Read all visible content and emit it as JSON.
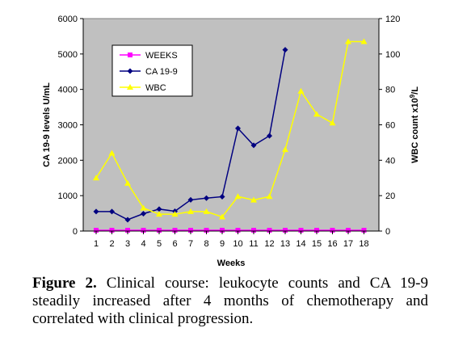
{
  "chart_data": {
    "type": "line",
    "title": "",
    "x": [
      1,
      2,
      3,
      4,
      5,
      6,
      7,
      8,
      9,
      10,
      11,
      12,
      13,
      14,
      15,
      16,
      17,
      18
    ],
    "xlabel": "Weeks",
    "ylabel_left": "CA 19-9 levels U/mL",
    "ylabel_right_prefix": "WBC count x10",
    "ylabel_right_sup": "9",
    "ylabel_right_suffix": "/L",
    "ylim_left": [
      0,
      6000
    ],
    "yticks_left": [
      "0",
      "1000",
      "2000",
      "3000",
      "4000",
      "5000",
      "6000"
    ],
    "ylim_right": [
      0,
      120
    ],
    "yticks_right": [
      "0",
      "20",
      "40",
      "60",
      "80",
      "100",
      "120"
    ],
    "xticks": [
      "1",
      "2",
      "3",
      "4",
      "5",
      "6",
      "7",
      "8",
      "9",
      "10",
      "11",
      "12",
      "13",
      "14",
      "15",
      "16",
      "17",
      "18"
    ],
    "plot_background": "#c0c0c0",
    "grid": false,
    "legend_position": "top-left",
    "series": [
      {
        "name": "WEEKS",
        "axis": "left",
        "color": "#ff00ff",
        "marker": "square",
        "x": [
          1,
          2,
          3,
          4,
          5,
          6,
          7,
          8,
          9,
          10,
          11,
          12,
          13,
          14,
          15,
          16,
          17,
          18
        ],
        "values": [
          1,
          2,
          3,
          4,
          5,
          6,
          7,
          8,
          9,
          10,
          11,
          12,
          13,
          14,
          15,
          16,
          17,
          18
        ]
      },
      {
        "name": "CA 19-9",
        "axis": "left",
        "color": "#000080",
        "marker": "diamond",
        "x": [
          1,
          2,
          3,
          4,
          5,
          6,
          7,
          8,
          9,
          10,
          11,
          12,
          13
        ],
        "values": [
          550,
          550,
          320,
          490,
          620,
          560,
          880,
          930,
          970,
          2900,
          2420,
          2690,
          5120
        ]
      },
      {
        "name": "WBC",
        "axis": "right",
        "color": "#ffff00",
        "marker": "triangle",
        "x": [
          1,
          2,
          3,
          4,
          5,
          6,
          7,
          8,
          9,
          10,
          11,
          12,
          13,
          14,
          15,
          16,
          17,
          18
        ],
        "values": [
          30,
          44,
          27,
          13,
          9.5,
          9.5,
          11,
          11,
          8,
          19.5,
          17.5,
          19.5,
          46,
          79,
          66,
          61,
          107,
          107
        ]
      }
    ]
  },
  "caption": {
    "label": "Figure 2.",
    "text": " Clinical course: leukocyte counts and CA 19-9 steadily increased after 4 months of chemotherapy and correlated with clinical progression."
  }
}
